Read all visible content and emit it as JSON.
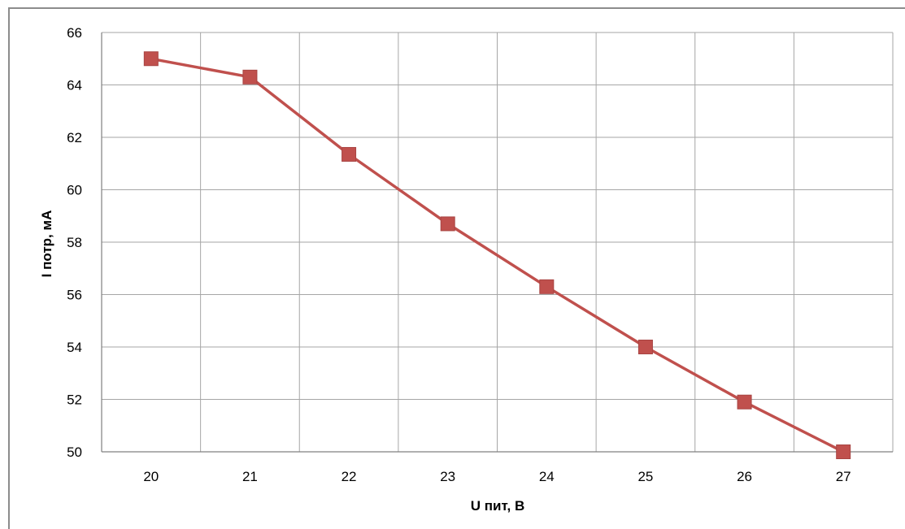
{
  "chart_data": {
    "type": "line",
    "x": [
      20,
      21,
      22,
      23,
      24,
      25,
      26,
      27
    ],
    "categories": [
      "20",
      "21",
      "22",
      "23",
      "24",
      "25",
      "26",
      "27"
    ],
    "series": [
      {
        "values": [
          65.0,
          64.3,
          61.35,
          58.7,
          56.3,
          54.0,
          51.9,
          50.0
        ]
      }
    ],
    "title": "",
    "xlabel": "U пит, В",
    "ylabel": "I потр, мА",
    "ylim": [
      50,
      66
    ],
    "yticks": [
      "50",
      "52",
      "54",
      "56",
      "58",
      "60",
      "62",
      "64",
      "66"
    ],
    "grid": true,
    "marker": "square",
    "colors": {
      "line": "#c0504d",
      "marker": "#c0504d",
      "marker_edge": "#a84442",
      "grid": "#a6a6a6",
      "axis": "#808080",
      "frame": "#8c8c8c"
    }
  }
}
